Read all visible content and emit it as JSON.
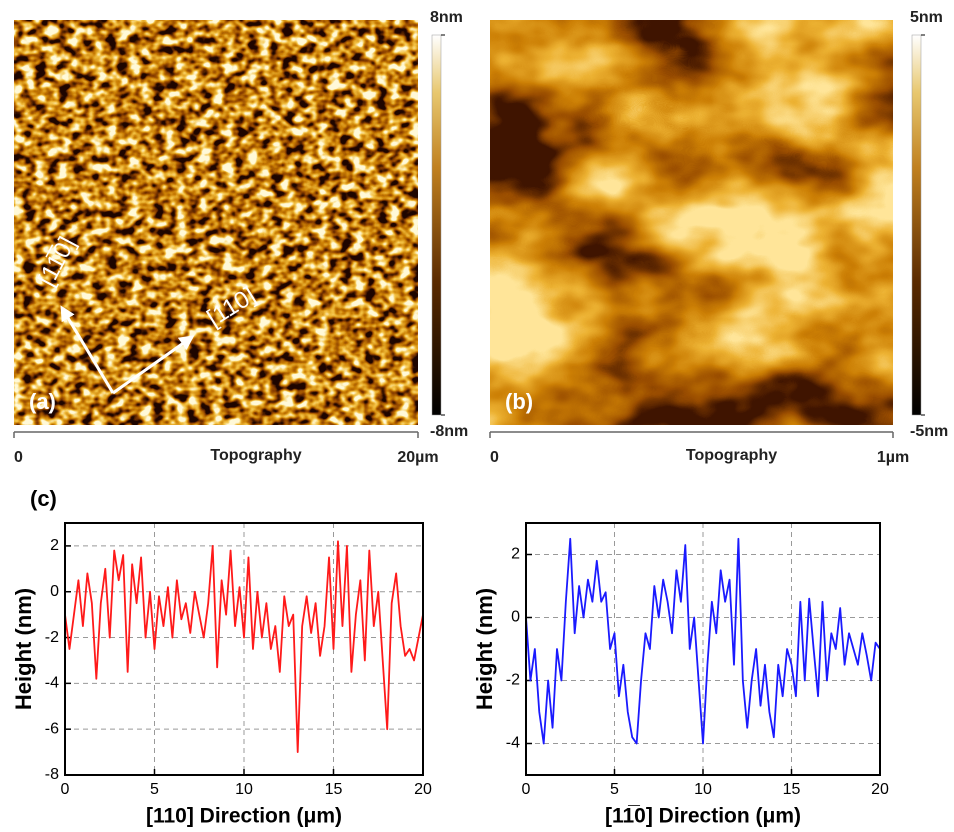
{
  "chart_data": [
    {
      "type": "image",
      "panel_label": "(a)",
      "x_label": "Topography",
      "xlim": [
        0,
        20
      ],
      "xticks": [
        0,
        {
          "value": 20,
          "label": "20µm"
        }
      ],
      "clim": [
        -8,
        8
      ],
      "cticks": [
        {
          "value": -8,
          "label": "-8nm"
        },
        {
          "value": 8,
          "label": "8nm"
        }
      ],
      "annotations": [
        "[11̅0]",
        "[110]"
      ]
    },
    {
      "type": "image",
      "panel_label": "(b)",
      "x_label": "Topography",
      "xlim": [
        0,
        1
      ],
      "xticks": [
        0,
        {
          "value": 1,
          "label": "1µm"
        }
      ],
      "clim": [
        -5,
        5
      ],
      "cticks": [
        {
          "value": -5,
          "label": "-5nm"
        },
        {
          "value": 5,
          "label": "5nm"
        }
      ]
    },
    {
      "type": "line",
      "panel_label": "(c)",
      "x_label": "[110] Direction (μm)",
      "y_label": "Height (nm)",
      "grid": true,
      "xlim": [
        0,
        20
      ],
      "xticks": [
        0,
        5,
        10,
        15,
        20
      ],
      "ylim": [
        -8,
        3
      ],
      "yticks": [
        -8,
        -6,
        -4,
        -2,
        0,
        2
      ],
      "x": [
        0,
        0.25,
        0.5,
        0.75,
        1,
        1.25,
        1.5,
        1.75,
        2,
        2.25,
        2.5,
        2.75,
        3,
        3.25,
        3.5,
        3.75,
        4,
        4.25,
        4.5,
        4.75,
        5,
        5.25,
        5.5,
        5.75,
        6,
        6.25,
        6.5,
        6.75,
        7,
        7.25,
        7.5,
        7.75,
        8,
        8.25,
        8.5,
        8.75,
        9,
        9.25,
        9.5,
        9.75,
        10,
        10.25,
        10.5,
        10.75,
        11,
        11.25,
        11.5,
        11.75,
        12,
        12.25,
        12.5,
        12.75,
        13,
        13.25,
        13.5,
        13.75,
        14,
        14.25,
        14.5,
        14.75,
        15,
        15.25,
        15.5,
        15.75,
        16,
        16.25,
        16.5,
        16.75,
        17,
        17.25,
        17.5,
        17.75,
        18,
        18.25,
        18.5,
        18.75,
        19,
        19.25,
        19.5,
        19.75,
        20
      ],
      "series": [
        {
          "color": "#ff1a1a",
          "values": [
            -1,
            -2.5,
            -1,
            0.5,
            -1.5,
            0.8,
            -0.5,
            -3.8,
            -0.5,
            1,
            -2,
            1.8,
            0.5,
            1.6,
            -3.5,
            1.2,
            -0.5,
            1.5,
            -2,
            0,
            -2.5,
            -0.2,
            -1.5,
            0.2,
            -2,
            0.5,
            -1.2,
            -0.5,
            -1.8,
            0,
            -1,
            -2,
            -0.5,
            2,
            -3.3,
            0.5,
            -1,
            1.8,
            -1.5,
            0.2,
            -2,
            1.5,
            -2.5,
            0,
            -2,
            -0.5,
            -2.5,
            -1.5,
            -3.5,
            -0.2,
            -1.5,
            -1,
            -7,
            -1.5,
            -0.2,
            -1.8,
            -0.5,
            -2.8,
            -1.5,
            1.5,
            -2.5,
            2.2,
            -1.5,
            2,
            -3.5,
            -1,
            0.5,
            -3,
            1.8,
            -1.5,
            0,
            -3,
            -6,
            -0.5,
            0.8,
            -1.5,
            -2.8,
            -2.5,
            -3,
            -2,
            -1
          ]
        }
      ]
    },
    {
      "type": "line",
      "x_label": "[11̅0] Direction (μm)",
      "y_label": "Height (nm)",
      "grid": true,
      "xlim": [
        0,
        20
      ],
      "xticks": [
        0,
        5,
        10,
        15,
        20
      ],
      "ylim": [
        -5,
        3
      ],
      "yticks": [
        -4,
        -2,
        0,
        2
      ],
      "x": [
        0,
        0.25,
        0.5,
        0.75,
        1,
        1.25,
        1.5,
        1.75,
        2,
        2.25,
        2.5,
        2.75,
        3,
        3.25,
        3.5,
        3.75,
        4,
        4.25,
        4.5,
        4.75,
        5,
        5.25,
        5.5,
        5.75,
        6,
        6.25,
        6.5,
        6.75,
        7,
        7.25,
        7.5,
        7.75,
        8,
        8.25,
        8.5,
        8.75,
        9,
        9.25,
        9.5,
        9.75,
        10,
        10.25,
        10.5,
        10.75,
        11,
        11.25,
        11.5,
        11.75,
        12,
        12.25,
        12.5,
        12.75,
        13,
        13.25,
        13.5,
        13.75,
        14,
        14.25,
        14.5,
        14.75,
        15,
        15.25,
        15.5,
        15.75,
        16,
        16.25,
        16.5,
        16.75,
        17,
        17.25,
        17.5,
        17.75,
        18,
        18.25,
        18.5,
        18.75,
        19,
        19.25,
        19.5,
        19.75,
        20
      ],
      "series": [
        {
          "color": "#1a1aff",
          "values": [
            0,
            -2,
            -1,
            -3,
            -4,
            -2,
            -3.5,
            -1,
            -2,
            0.5,
            2.5,
            -0.5,
            1,
            0,
            1.2,
            0.5,
            1.8,
            0.5,
            0.8,
            -1,
            -0.5,
            -2.5,
            -1.5,
            -3,
            -3.8,
            -4,
            -2,
            -0.5,
            -1,
            1,
            0,
            1.2,
            0.5,
            -0.5,
            1.5,
            0.5,
            2.3,
            -1,
            0,
            -2,
            -4,
            -1.5,
            0.5,
            -0.5,
            1.5,
            0.5,
            1.2,
            -1.5,
            2.5,
            -2,
            -3.5,
            -2,
            -1,
            -2.8,
            -1.5,
            -3,
            -3.8,
            -1.5,
            -2.5,
            -1,
            -1.5,
            -2.5,
            0.5,
            -2,
            0.6,
            -1,
            -2.5,
            0.5,
            -2,
            -0.5,
            -1,
            0.3,
            -1.5,
            -0.5,
            -1,
            -1.5,
            -0.5,
            -1.2,
            -2,
            -0.8,
            -1
          ]
        }
      ]
    }
  ]
}
